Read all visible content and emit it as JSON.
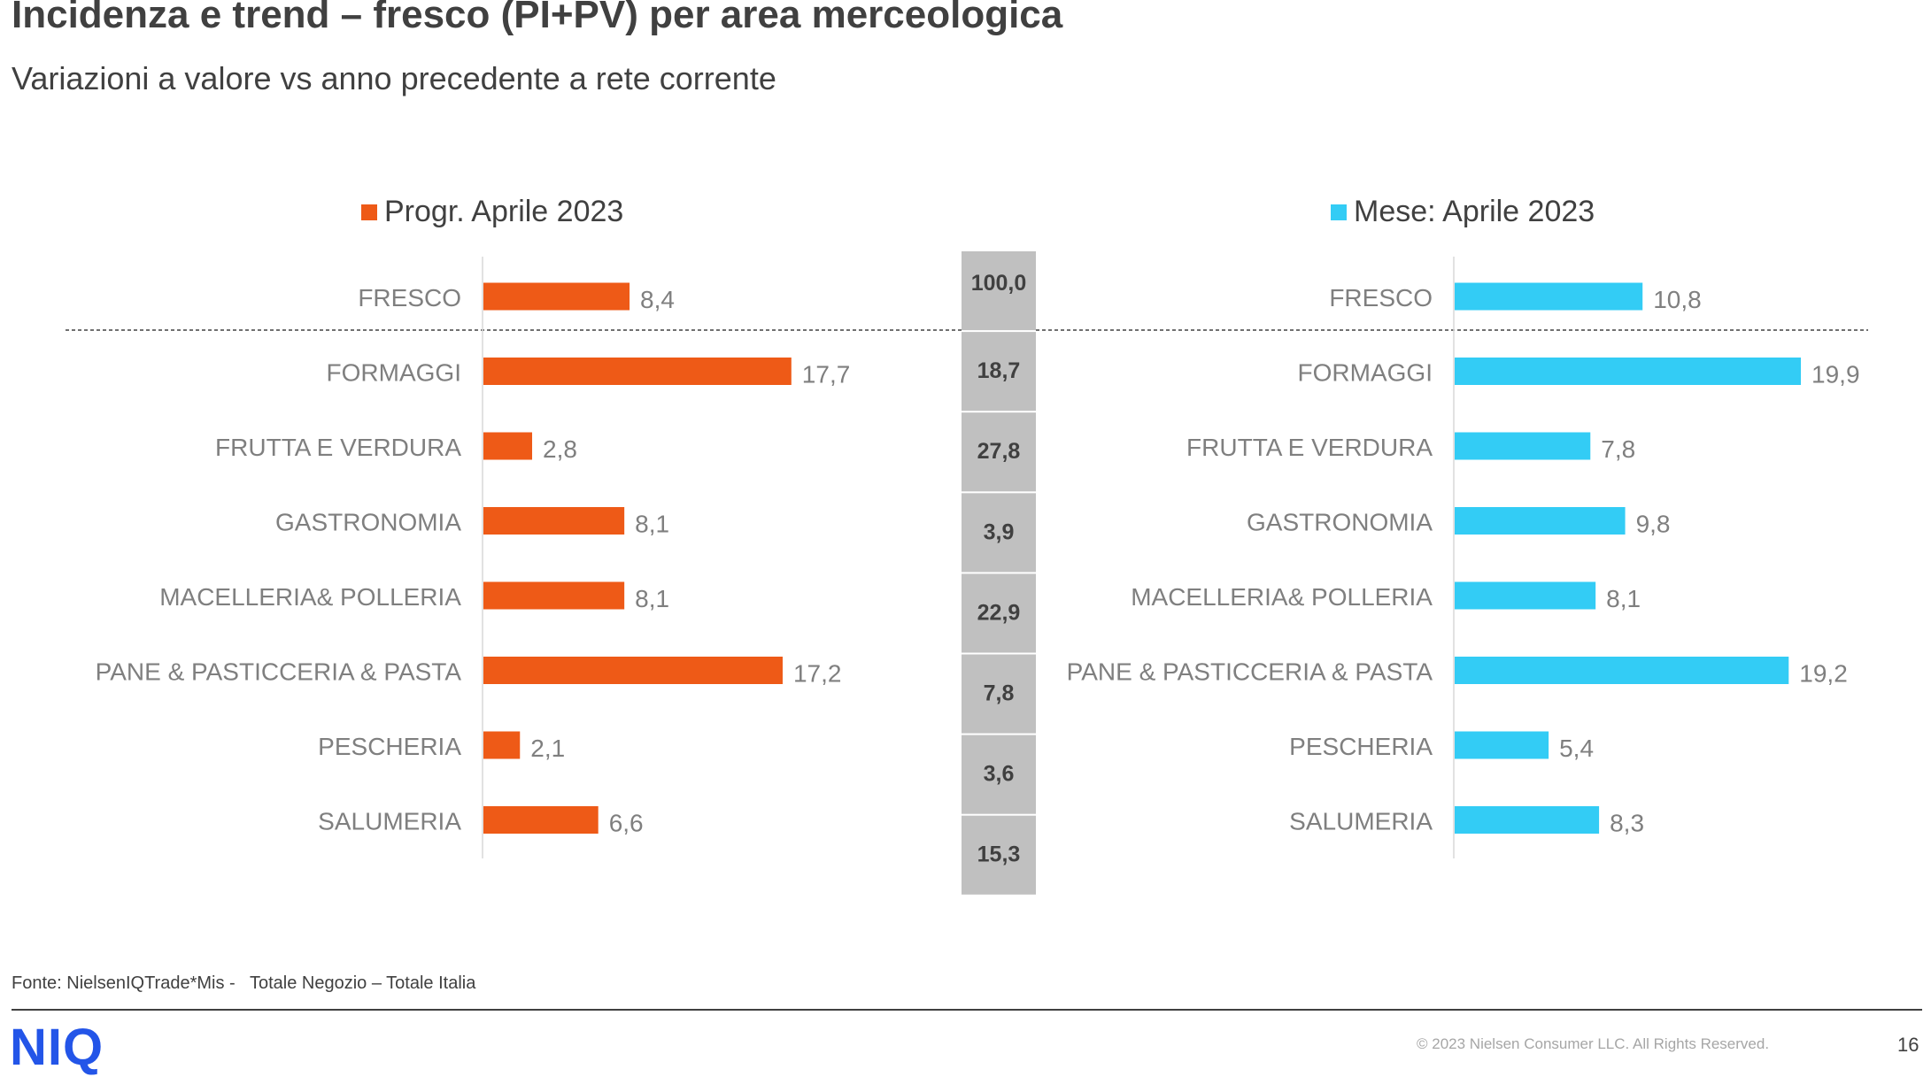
{
  "header": {
    "title": "Incidenza e trend – fresco (PI+PV) per area merceologica",
    "subtitle": "Variazioni a valore vs anno precedente a rete corrente"
  },
  "chart_data": [
    {
      "type": "bar",
      "orientation": "horizontal",
      "legend": "Progr. Aprile 2023",
      "color": "#ee5a17",
      "categories": [
        "FRESCO",
        "FORMAGGI",
        "FRUTTA E VERDURA",
        "GASTRONOMIA",
        "MACELLERIA& POLLERIA",
        "PANE & PASTICCERIA & PASTA",
        "PESCHERIA",
        "SALUMERIA"
      ],
      "values": [
        8.4,
        17.7,
        2.8,
        8.1,
        8.1,
        17.2,
        2.1,
        6.6
      ],
      "value_labels": [
        "8,4",
        "17,7",
        "2,8",
        "8,1",
        "8,1",
        "17,2",
        "2,1",
        "6,6"
      ]
    },
    {
      "type": "table",
      "color": "#c0c0c0",
      "values": [
        100.0,
        18.7,
        27.8,
        3.9,
        22.9,
        7.8,
        3.6,
        15.3
      ],
      "value_labels": [
        "100,0",
        "18,7",
        "27,8",
        "3,9",
        "22,9",
        "7,8",
        "3,6",
        "15,3"
      ]
    },
    {
      "type": "bar",
      "orientation": "horizontal",
      "legend": "Mese: Aprile 2023",
      "color": "#33ccf5",
      "categories": [
        "FRESCO",
        "FORMAGGI",
        "FRUTTA E VERDURA",
        "GASTRONOMIA",
        "MACELLERIA& POLLERIA",
        "PANE & PASTICCERIA & PASTA",
        "PESCHERIA",
        "SALUMERIA"
      ],
      "values": [
        10.8,
        19.9,
        7.8,
        9.8,
        8.1,
        19.2,
        5.4,
        8.3
      ],
      "value_labels": [
        "10,8",
        "19,9",
        "7,8",
        "9,8",
        "8,1",
        "19,2",
        "5,4",
        "8,3"
      ]
    }
  ],
  "footer": {
    "source": "Fonte: NielsenIQTrade*Mis -   Totale Negozio – Totale Italia",
    "logo": "NIQ",
    "copyright": "© 2023 Nielsen Consumer LLC. All Rights Reserved.",
    "page_number": "16"
  }
}
